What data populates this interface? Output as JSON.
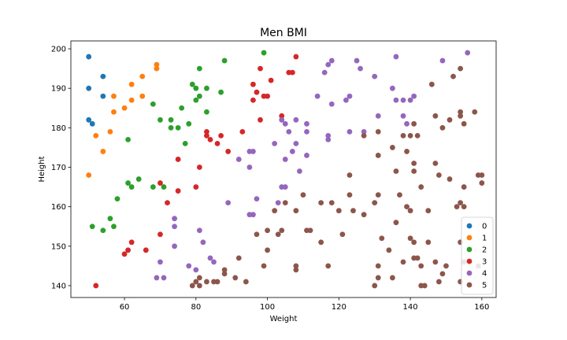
{
  "chart_data": {
    "type": "scatter",
    "title": "Men BMI",
    "xlabel": "Weight",
    "ylabel": "Height",
    "xlim": [
      45,
      164
    ],
    "ylim": [
      137,
      202
    ],
    "xticks": [
      60,
      80,
      100,
      120,
      140,
      160
    ],
    "yticks": [
      140,
      150,
      160,
      170,
      180,
      190,
      200
    ],
    "grid": false,
    "legend_position": "lower-right",
    "series": [
      {
        "name": "0",
        "color": "#1f77b4",
        "points": [
          [
            50,
            198
          ],
          [
            50,
            190
          ],
          [
            54,
            193
          ],
          [
            54,
            188
          ],
          [
            50,
            182
          ],
          [
            51,
            181
          ]
        ]
      },
      {
        "name": "1",
        "color": "#ff7f0e",
        "points": [
          [
            69,
            196
          ],
          [
            69,
            195
          ],
          [
            65,
            193
          ],
          [
            62,
            191
          ],
          [
            57,
            188
          ],
          [
            65,
            188
          ],
          [
            62,
            187
          ],
          [
            60,
            185
          ],
          [
            57,
            184
          ],
          [
            52,
            178
          ],
          [
            56,
            179
          ],
          [
            54,
            174
          ],
          [
            50,
            168
          ]
        ]
      },
      {
        "name": "2",
        "color": "#2ca02c",
        "points": [
          [
            99,
            199
          ],
          [
            88,
            197
          ],
          [
            81,
            195
          ],
          [
            79,
            191
          ],
          [
            80,
            190
          ],
          [
            83,
            190
          ],
          [
            81,
            188
          ],
          [
            87,
            189
          ],
          [
            80,
            187
          ],
          [
            68,
            186
          ],
          [
            76,
            185
          ],
          [
            83,
            184
          ],
          [
            70,
            182
          ],
          [
            73,
            182
          ],
          [
            78,
            181
          ],
          [
            73,
            180
          ],
          [
            75,
            180
          ],
          [
            61,
            177
          ],
          [
            77,
            176
          ],
          [
            61,
            166
          ],
          [
            64,
            167
          ],
          [
            62,
            165
          ],
          [
            68,
            165
          ],
          [
            71,
            165
          ],
          [
            58,
            162
          ],
          [
            56,
            157
          ],
          [
            51,
            155
          ],
          [
            57,
            155
          ],
          [
            54,
            154
          ]
        ]
      },
      {
        "name": "3",
        "color": "#d62728",
        "points": [
          [
            108,
            198
          ],
          [
            98,
            195
          ],
          [
            96,
            191
          ],
          [
            101,
            192
          ],
          [
            97,
            189
          ],
          [
            99,
            188
          ],
          [
            100,
            188
          ],
          [
            96,
            187
          ],
          [
            104,
            183
          ],
          [
            107,
            194
          ],
          [
            106,
            194
          ],
          [
            98,
            182
          ],
          [
            83,
            179
          ],
          [
            83,
            178
          ],
          [
            87,
            178
          ],
          [
            93,
            179
          ],
          [
            84,
            177
          ],
          [
            86,
            176
          ],
          [
            89,
            174
          ],
          [
            75,
            172
          ],
          [
            81,
            170
          ],
          [
            70,
            166
          ],
          [
            80,
            165
          ],
          [
            75,
            164
          ],
          [
            72,
            161
          ],
          [
            70,
            153
          ],
          [
            62,
            151
          ],
          [
            61,
            149
          ],
          [
            60,
            148
          ],
          [
            66,
            149
          ],
          [
            52,
            140
          ]
        ]
      },
      {
        "name": "4",
        "color": "#9467bd",
        "points": [
          [
            156,
            199
          ],
          [
            149,
            197
          ],
          [
            125,
            197
          ],
          [
            136,
            198
          ],
          [
            118,
            197
          ],
          [
            117,
            196
          ],
          [
            116,
            194
          ],
          [
            130,
            193
          ],
          [
            126,
            195
          ],
          [
            135,
            190
          ],
          [
            122,
            187
          ],
          [
            114,
            188
          ],
          [
            118,
            186
          ],
          [
            123,
            188
          ],
          [
            136,
            187
          ],
          [
            138,
            187
          ],
          [
            140,
            187
          ],
          [
            141,
            188
          ],
          [
            138,
            183
          ],
          [
            131,
            183
          ],
          [
            139,
            181
          ],
          [
            105,
            181
          ],
          [
            104,
            182
          ],
          [
            108,
            182
          ],
          [
            111,
            181
          ],
          [
            106,
            179
          ],
          [
            111,
            179
          ],
          [
            123,
            179
          ],
          [
            117,
            178
          ],
          [
            117,
            177
          ],
          [
            127,
            179
          ],
          [
            108,
            176
          ],
          [
            102,
            176
          ],
          [
            107,
            174
          ],
          [
            95,
            174
          ],
          [
            96,
            174
          ],
          [
            92,
            172
          ],
          [
            105,
            172
          ],
          [
            111,
            173
          ],
          [
            95,
            170
          ],
          [
            109,
            169
          ],
          [
            104,
            165
          ],
          [
            105,
            165
          ],
          [
            97,
            162
          ],
          [
            103,
            161
          ],
          [
            89,
            161
          ],
          [
            95,
            158
          ],
          [
            96,
            158
          ],
          [
            74,
            157
          ],
          [
            74,
            155
          ],
          [
            81,
            154
          ],
          [
            82,
            151
          ],
          [
            74,
            150
          ],
          [
            70,
            146
          ],
          [
            84,
            147
          ],
          [
            85,
            146
          ],
          [
            78,
            145
          ],
          [
            80,
            144
          ],
          [
            69,
            142
          ],
          [
            71,
            142
          ]
        ]
      },
      {
        "name": "5",
        "color": "#8c564b",
        "points": [
          [
            154,
            195
          ],
          [
            152,
            193
          ],
          [
            146,
            191
          ],
          [
            158,
            184
          ],
          [
            154,
            184
          ],
          [
            154,
            183
          ],
          [
            147,
            183
          ],
          [
            155,
            181
          ],
          [
            151,
            182
          ],
          [
            149,
            180
          ],
          [
            141,
            181
          ],
          [
            131,
            179
          ],
          [
            138,
            178
          ],
          [
            140,
            178
          ],
          [
            142,
            178
          ],
          [
            127,
            178
          ],
          [
            135,
            175
          ],
          [
            139,
            174
          ],
          [
            131,
            173
          ],
          [
            147,
            171
          ],
          [
            141,
            171
          ],
          [
            136,
            169
          ],
          [
            141,
            169
          ],
          [
            148,
            168
          ],
          [
            151,
            167
          ],
          [
            159,
            168
          ],
          [
            160,
            168
          ],
          [
            123,
            168
          ],
          [
            160,
            166
          ],
          [
            143,
            165
          ],
          [
            155,
            165
          ],
          [
            137,
            163
          ],
          [
            131,
            163
          ],
          [
            123,
            163
          ],
          [
            110,
            163
          ],
          [
            105,
            161
          ],
          [
            115,
            161
          ],
          [
            118,
            161
          ],
          [
            130,
            161
          ],
          [
            139,
            160
          ],
          [
            140,
            159
          ],
          [
            120,
            159
          ],
          [
            124,
            159
          ],
          [
            127,
            158
          ],
          [
            136,
            156
          ],
          [
            154,
            161
          ],
          [
            155,
            160
          ],
          [
            153,
            160
          ],
          [
            145,
            159
          ],
          [
            108,
            159
          ],
          [
            102,
            159
          ],
          [
            100,
            154
          ],
          [
            104,
            154
          ],
          [
            111,
            154
          ],
          [
            112,
            154
          ],
          [
            97,
            153
          ],
          [
            103,
            153
          ],
          [
            121,
            153
          ],
          [
            132,
            152
          ],
          [
            140,
            152
          ],
          [
            115,
            151
          ],
          [
            145,
            151
          ],
          [
            141,
            151
          ],
          [
            154,
            151
          ],
          [
            134,
            149
          ],
          [
            100,
            149
          ],
          [
            92,
            147
          ],
          [
            138,
            146
          ],
          [
            141,
            147
          ],
          [
            142,
            147
          ],
          [
            147,
            146
          ],
          [
            150,
            145
          ],
          [
            155,
            146
          ],
          [
            108,
            145
          ],
          [
            108,
            144
          ],
          [
            99,
            145
          ],
          [
            117,
            145
          ],
          [
            83,
            141
          ],
          [
            85,
            141
          ],
          [
            86,
            141
          ],
          [
            88,
            143
          ],
          [
            88,
            144
          ],
          [
            91,
            142
          ],
          [
            94,
            141
          ],
          [
            81,
            142
          ],
          [
            80,
            141
          ],
          [
            79,
            140
          ],
          [
            81,
            140
          ],
          [
            130,
            140
          ],
          [
            131,
            145
          ],
          [
            131,
            142
          ],
          [
            135,
            142
          ],
          [
            143,
            145
          ],
          [
            143,
            140
          ],
          [
            144,
            140
          ],
          [
            149,
            143
          ],
          [
            148,
            141
          ],
          [
            154,
            141
          ],
          [
            159,
            145
          ]
        ]
      }
    ]
  }
}
